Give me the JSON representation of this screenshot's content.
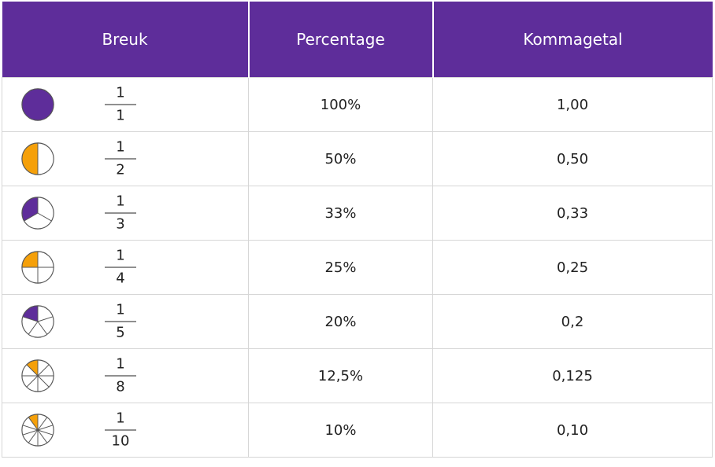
{
  "colors": {
    "header_bg": "#5e2d9a",
    "purple": "#5e2d9a",
    "orange": "#f5a00a"
  },
  "header": {
    "col1": "Breuk",
    "col2": "Percentage",
    "col3": "Kommagetal"
  },
  "rows": [
    {
      "numerator": "1",
      "denominator": "1",
      "percentage": "100%",
      "decimal": "1,00",
      "slices": 1,
      "fill": "purple"
    },
    {
      "numerator": "1",
      "denominator": "2",
      "percentage": "50%",
      "decimal": "0,50",
      "slices": 2,
      "fill": "orange"
    },
    {
      "numerator": "1",
      "denominator": "3",
      "percentage": "33%",
      "decimal": "0,33",
      "slices": 3,
      "fill": "purple"
    },
    {
      "numerator": "1",
      "denominator": "4",
      "percentage": "25%",
      "decimal": "0,25",
      "slices": 4,
      "fill": "orange"
    },
    {
      "numerator": "1",
      "denominator": "5",
      "percentage": "20%",
      "decimal": "0,2",
      "slices": 5,
      "fill": "purple"
    },
    {
      "numerator": "1",
      "denominator": "8",
      "percentage": "12,5%",
      "decimal": "0,125",
      "slices": 8,
      "fill": "orange"
    },
    {
      "numerator": "1",
      "denominator": "10",
      "percentage": "10%",
      "decimal": "0,10",
      "slices": 10,
      "fill": "orange"
    }
  ]
}
